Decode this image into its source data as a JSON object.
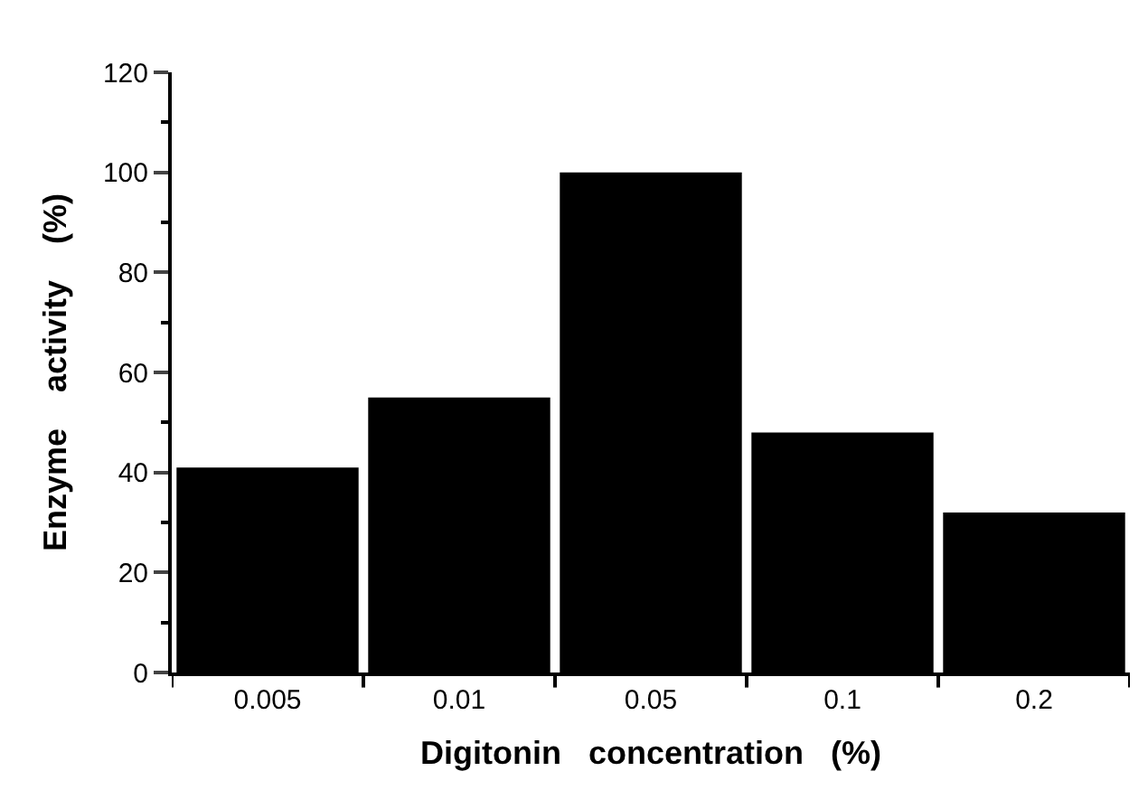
{
  "chart_data": {
    "type": "bar",
    "xlabel": "Digitonin   concentration   (%)",
    "ylabel": "Enzyme    activity    (%)",
    "categories": [
      "0.005",
      "0.01",
      "0.05",
      "0.1",
      "0.2"
    ],
    "values": [
      41,
      55,
      100,
      48,
      32
    ],
    "color": "#000000",
    "ylim": [
      0,
      120
    ],
    "yticks": [
      0,
      20,
      40,
      60,
      80,
      100,
      120
    ]
  }
}
